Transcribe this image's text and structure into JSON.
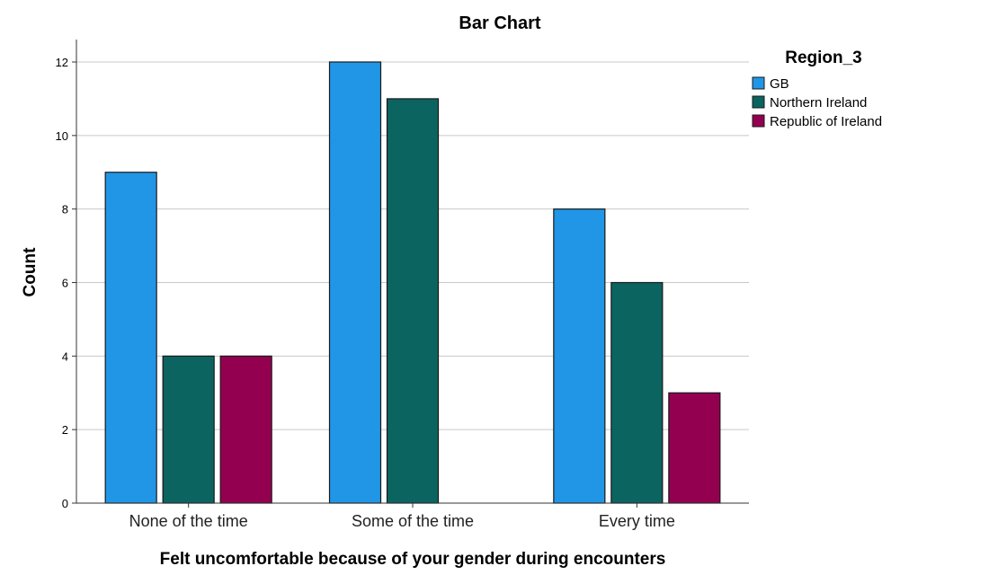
{
  "chart_data": {
    "type": "bar",
    "title": "Bar Chart",
    "xlabel": "Felt uncomfortable because of your gender during encounters",
    "ylabel": "Count",
    "categories": [
      "None of the time",
      "Some of the time",
      "Every time"
    ],
    "series": [
      {
        "name": "GB",
        "color": "#2196e6",
        "values": [
          9,
          12,
          8
        ]
      },
      {
        "name": "Northern Ireland",
        "color": "#0b6460",
        "values": [
          4,
          11,
          6
        ]
      },
      {
        "name": "Republic of Ireland",
        "color": "#940050",
        "values": [
          4,
          null,
          3
        ]
      }
    ],
    "ylim": [
      0,
      12.5
    ],
    "yticks": [
      0,
      2,
      4,
      6,
      8,
      10,
      12
    ],
    "grid": "horizontal",
    "legend": {
      "title": "Region_3",
      "position": "right"
    }
  }
}
